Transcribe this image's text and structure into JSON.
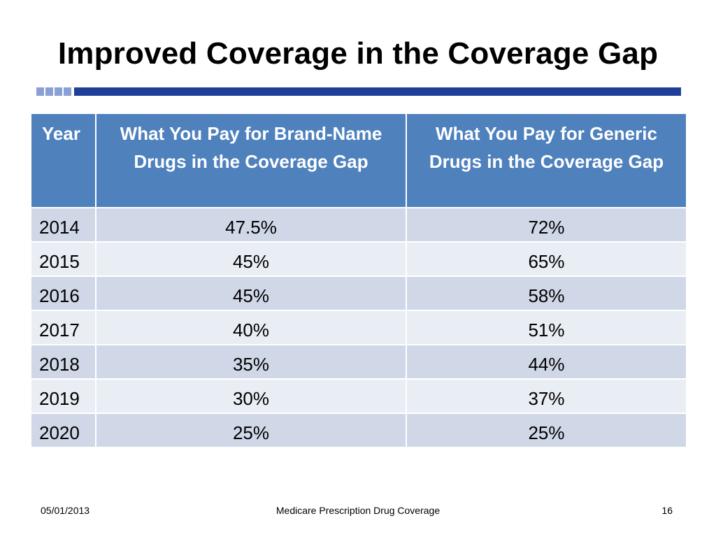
{
  "slide": {
    "title": "Improved Coverage in the Coverage Gap"
  },
  "table": {
    "headers": {
      "year": "Year",
      "brand": "What You Pay for Brand-Name Drugs in the Coverage Gap",
      "generic": "What You Pay for Generic Drugs in the Coverage Gap"
    },
    "rows": [
      {
        "year": "2014",
        "brand": "47.5%",
        "generic": "72%"
      },
      {
        "year": "2015",
        "brand": "45%",
        "generic": "65%"
      },
      {
        "year": "2016",
        "brand": "45%",
        "generic": "58%"
      },
      {
        "year": "2017",
        "brand": "40%",
        "generic": "51%"
      },
      {
        "year": "2018",
        "brand": "35%",
        "generic": "44%"
      },
      {
        "year": "2019",
        "brand": "30%",
        "generic": "37%"
      },
      {
        "year": "2020",
        "brand": "25%",
        "generic": "25%"
      }
    ]
  },
  "footer": {
    "date": "05/01/2013",
    "center": "Medicare Prescription Drug Coverage",
    "page": "16"
  },
  "colors": {
    "header_bg": "#4f81bd",
    "row_dark": "#d0d8e8",
    "row_light": "#e9edf4",
    "rule": "#1f3f99"
  }
}
